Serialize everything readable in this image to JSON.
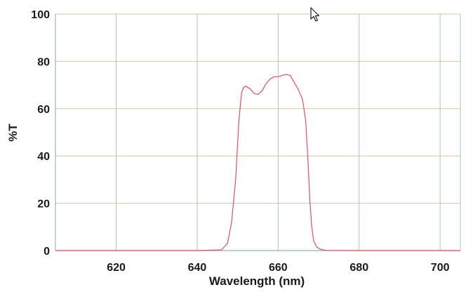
{
  "chart_data": {
    "type": "line",
    "title": "",
    "xlabel": "Wavelength (nm)",
    "ylabel": "%T",
    "xlim": [
      605,
      705
    ],
    "ylim": [
      0,
      100
    ],
    "x_ticks": [
      "620",
      "640",
      "660",
      "680",
      "700"
    ],
    "y_ticks": [
      "0",
      "20",
      "40",
      "60",
      "80",
      "100"
    ],
    "grid": true,
    "series": [
      {
        "color": "#e0506a",
        "x": [
          605,
          620,
          640,
          646,
          647.5,
          648.5,
          649.5,
          650.3,
          651,
          651.5,
          652,
          653,
          654,
          655,
          656,
          657,
          658,
          659,
          660,
          661,
          662,
          663,
          664,
          665,
          666,
          666.8,
          667.3,
          667.8,
          668.3,
          668.8,
          669.5,
          670.5,
          672,
          680,
          705
        ],
        "y": [
          0,
          0,
          0,
          0.3,
          3,
          12,
          30,
          55,
          67,
          69,
          69.5,
          68.5,
          66.5,
          66,
          67.5,
          70.5,
          72.5,
          73.5,
          73.5,
          74,
          74.5,
          74,
          71,
          68,
          64,
          55,
          40,
          22,
          10,
          4,
          1.5,
          0.5,
          0.1,
          0,
          0
        ]
      }
    ]
  },
  "colors": {
    "grid_vertical": "#a8c8bc",
    "grid_horizontal": "#d2c8a0",
    "axis": "#8fb8b4",
    "curve": "#e0506a",
    "text": "#1a1a1a"
  },
  "icons": [
    "mouse-cursor-icon"
  ]
}
